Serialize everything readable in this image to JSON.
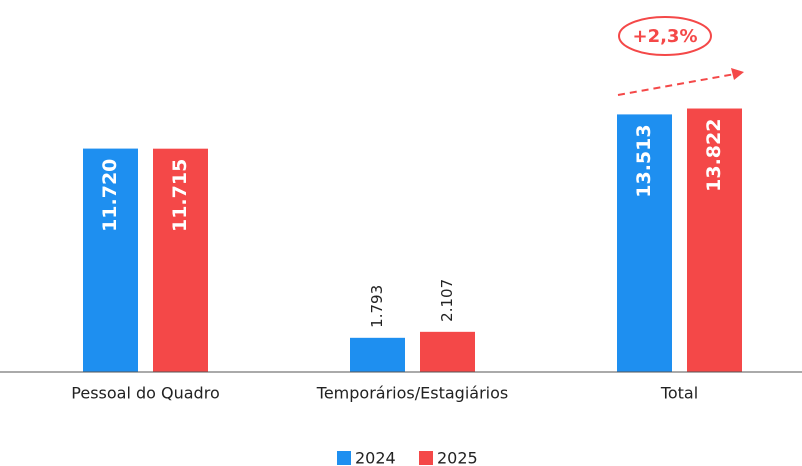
{
  "chart_data": {
    "type": "bar",
    "categories": [
      "Pessoal do Quadro",
      "Temporários/Estagiários",
      "Total"
    ],
    "series": [
      {
        "name": "2024",
        "color": "#1e8ff0",
        "values": [
          11720,
          1793,
          13513
        ],
        "value_labels": [
          "11.720",
          "1.793",
          "13.513"
        ]
      },
      {
        "name": "2025",
        "color": "#f44848",
        "values": [
          11715,
          2107,
          13822
        ],
        "value_labels": [
          "11.715",
          "2.107",
          "13.822"
        ]
      }
    ],
    "ylim": [
      0,
      16000
    ],
    "annotation": "+2,3%",
    "legend": "bottom"
  }
}
